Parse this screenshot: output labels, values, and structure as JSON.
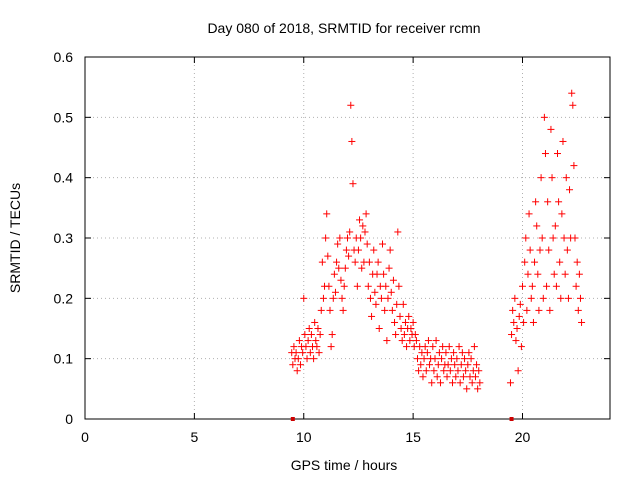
{
  "chart_data": {
    "type": "scatter",
    "title": "Day 080 of 2018, SRMTID for receiver rcmn",
    "xlabel": "GPS time / hours",
    "ylabel": "SRMTID / TECUs",
    "xlim": [
      0,
      24
    ],
    "ylim": [
      0,
      0.6
    ],
    "x_ticks": [
      0,
      5,
      10,
      15,
      20
    ],
    "x_tick_labels": [
      "0",
      "5",
      "10",
      "15",
      "20"
    ],
    "y_ticks": [
      0,
      0.1,
      0.2,
      0.3,
      0.4,
      0.5,
      0.6
    ],
    "y_tick_labels": [
      "0",
      "0.1",
      "0.2",
      "0.3",
      "0.4",
      "0.5",
      "0.6"
    ],
    "grid": true,
    "marker": "plus",
    "series": [
      {
        "name": "SRMTID",
        "color": "#ff0000",
        "x": [
          9.45,
          9.5,
          9.55,
          9.6,
          9.65,
          9.7,
          9.75,
          9.8,
          9.85,
          9.9,
          9.95,
          10.0,
          10.05,
          10.1,
          10.15,
          10.2,
          10.25,
          10.3,
          10.35,
          10.4,
          10.45,
          10.5,
          10.55,
          10.6,
          10.65,
          10.7,
          10.75,
          10.8,
          10.85,
          10.9,
          10.95,
          11.0,
          11.05,
          11.1,
          11.15,
          11.2,
          11.25,
          11.3,
          11.35,
          11.4,
          11.45,
          11.5,
          11.55,
          11.6,
          11.65,
          11.7,
          11.75,
          11.8,
          11.85,
          11.9,
          11.95,
          12.0,
          12.05,
          12.1,
          12.15,
          12.2,
          12.25,
          12.3,
          12.35,
          12.4,
          12.45,
          12.5,
          12.55,
          12.6,
          12.65,
          12.7,
          12.75,
          12.8,
          12.85,
          12.9,
          12.95,
          13.0,
          13.05,
          13.1,
          13.15,
          13.2,
          13.25,
          13.3,
          13.35,
          13.4,
          13.45,
          13.5,
          13.55,
          13.6,
          13.65,
          13.7,
          13.75,
          13.8,
          13.85,
          13.9,
          13.95,
          14.0,
          14.05,
          14.1,
          14.15,
          14.2,
          14.25,
          14.3,
          14.35,
          14.4,
          14.45,
          14.5,
          14.55,
          14.6,
          14.65,
          14.7,
          14.75,
          14.8,
          14.85,
          14.9,
          14.95,
          15.0,
          15.05,
          15.1,
          15.15,
          15.2,
          15.25,
          15.3,
          15.35,
          15.4,
          15.45,
          15.5,
          15.55,
          15.6,
          15.65,
          15.7,
          15.75,
          15.8,
          15.85,
          15.9,
          15.95,
          16.0,
          16.05,
          16.1,
          16.15,
          16.2,
          16.25,
          16.3,
          16.35,
          16.4,
          16.45,
          16.5,
          16.55,
          16.6,
          16.65,
          16.7,
          16.75,
          16.8,
          16.85,
          16.9,
          16.95,
          17.0,
          17.05,
          17.1,
          17.15,
          17.2,
          17.25,
          17.3,
          17.35,
          17.4,
          17.45,
          17.5,
          17.55,
          17.6,
          17.65,
          17.7,
          17.75,
          17.8,
          17.85,
          17.9,
          17.95,
          18.0,
          18.05,
          19.45,
          19.5,
          19.55,
          19.6,
          19.65,
          19.7,
          19.75,
          19.8,
          19.85,
          19.9,
          19.95,
          20.0,
          20.05,
          20.1,
          20.15,
          20.2,
          20.25,
          20.3,
          20.35,
          20.4,
          20.45,
          20.5,
          20.55,
          20.6,
          20.65,
          20.7,
          20.75,
          20.8,
          20.85,
          20.9,
          20.95,
          21.0,
          21.05,
          21.1,
          21.15,
          21.2,
          21.25,
          21.3,
          21.35,
          21.4,
          21.45,
          21.5,
          21.55,
          21.6,
          21.65,
          21.7,
          21.75,
          21.8,
          21.85,
          21.9,
          21.95,
          22.0,
          22.05,
          22.1,
          22.15,
          22.2,
          22.25,
          22.3,
          22.35,
          22.4,
          22.45,
          22.5,
          22.55,
          22.6,
          22.65,
          22.7
        ],
        "y": [
          0.11,
          0.09,
          0.12,
          0.1,
          0.11,
          0.08,
          0.1,
          0.13,
          0.09,
          0.12,
          0.11,
          0.2,
          0.14,
          0.12,
          0.1,
          0.13,
          0.15,
          0.11,
          0.14,
          0.12,
          0.1,
          0.16,
          0.13,
          0.12,
          0.15,
          0.11,
          0.14,
          0.18,
          0.26,
          0.2,
          0.22,
          0.3,
          0.34,
          0.27,
          0.22,
          0.18,
          0.12,
          0.14,
          0.2,
          0.24,
          0.21,
          0.26,
          0.29,
          0.25,
          0.3,
          0.23,
          0.2,
          0.18,
          0.22,
          0.25,
          0.28,
          0.3,
          0.27,
          0.31,
          0.52,
          0.46,
          0.39,
          0.28,
          0.26,
          0.3,
          0.22,
          0.28,
          0.33,
          0.3,
          0.25,
          0.32,
          0.26,
          0.31,
          0.34,
          0.29,
          0.22,
          0.26,
          0.2,
          0.17,
          0.24,
          0.28,
          0.21,
          0.19,
          0.24,
          0.26,
          0.15,
          0.22,
          0.2,
          0.29,
          0.24,
          0.18,
          0.22,
          0.13,
          0.2,
          0.25,
          0.28,
          0.21,
          0.18,
          0.23,
          0.16,
          0.14,
          0.19,
          0.31,
          0.22,
          0.17,
          0.15,
          0.13,
          0.19,
          0.14,
          0.16,
          0.12,
          0.15,
          0.17,
          0.13,
          0.15,
          0.14,
          0.16,
          0.12,
          0.14,
          0.13,
          0.1,
          0.08,
          0.12,
          0.09,
          0.11,
          0.07,
          0.1,
          0.12,
          0.08,
          0.11,
          0.13,
          0.09,
          0.1,
          0.06,
          0.12,
          0.08,
          0.1,
          0.13,
          0.07,
          0.09,
          0.11,
          0.06,
          0.1,
          0.12,
          0.08,
          0.09,
          0.11,
          0.07,
          0.09,
          0.12,
          0.08,
          0.1,
          0.06,
          0.11,
          0.09,
          0.07,
          0.1,
          0.08,
          0.12,
          0.06,
          0.09,
          0.11,
          0.07,
          0.1,
          0.08,
          0.05,
          0.09,
          0.11,
          0.07,
          0.1,
          0.06,
          0.08,
          0.12,
          0.07,
          0.09,
          0.05,
          0.08,
          0.06,
          0.06,
          0.14,
          0.18,
          0.16,
          0.2,
          0.13,
          0.15,
          0.08,
          0.17,
          0.19,
          0.12,
          0.22,
          0.16,
          0.26,
          0.3,
          0.18,
          0.24,
          0.34,
          0.28,
          0.2,
          0.22,
          0.16,
          0.26,
          0.36,
          0.32,
          0.24,
          0.18,
          0.28,
          0.4,
          0.3,
          0.2,
          0.5,
          0.44,
          0.22,
          0.36,
          0.28,
          0.18,
          0.48,
          0.4,
          0.3,
          0.24,
          0.32,
          0.22,
          0.44,
          0.36,
          0.26,
          0.2,
          0.34,
          0.46,
          0.3,
          0.24,
          0.4,
          0.28,
          0.2,
          0.38,
          0.3,
          0.54,
          0.52,
          0.42,
          0.3,
          0.22,
          0.26,
          0.18,
          0.24,
          0.2,
          0.16
        ]
      }
    ],
    "markers_on_axis": [
      9.5,
      19.5
    ]
  }
}
